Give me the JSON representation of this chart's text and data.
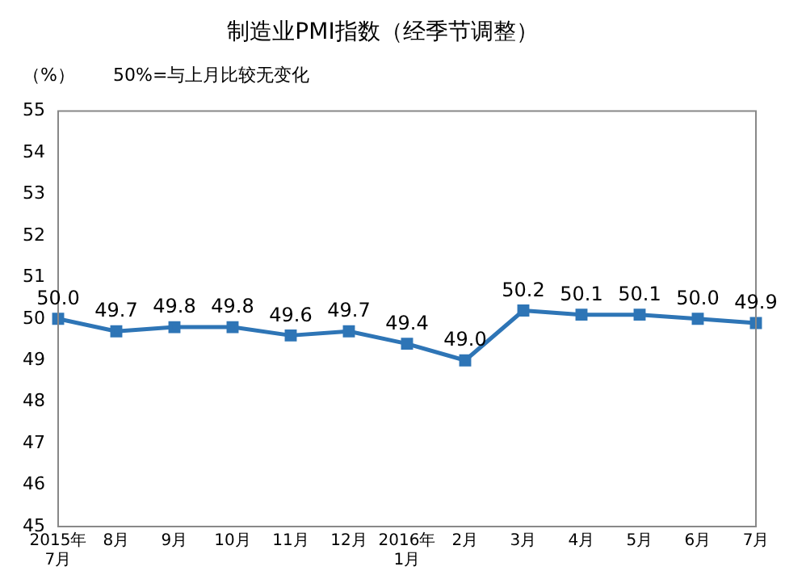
{
  "chart_data": {
    "type": "line",
    "title": "制造业PMI指数（经季节调整）",
    "ylabel": "（%）",
    "annotations": [
      "50%=与上月比较无变化"
    ],
    "categories": [
      "2015年\n7月",
      "8月",
      "9月",
      "10月",
      "11月",
      "12月",
      "2016年\n1月",
      "2月",
      "3月",
      "4月",
      "5月",
      "6月",
      "7月"
    ],
    "series": [
      {
        "color": "#2e75b6",
        "values": [
          50.0,
          49.7,
          49.8,
          49.8,
          49.6,
          49.7,
          49.4,
          49.0,
          50.2,
          50.1,
          50.1,
          50.0,
          49.9
        ],
        "value_labels": [
          "50.0",
          "49.7",
          "49.8",
          "49.8",
          "49.6",
          "49.7",
          "49.4",
          "49.0",
          "50.2",
          "50.1",
          "50.1",
          "50.0",
          "49.9"
        ]
      }
    ],
    "ylim": [
      45,
      55
    ],
    "yticks": [
      45,
      46,
      47,
      48,
      49,
      50,
      51,
      52,
      53,
      54,
      55
    ],
    "grid": false,
    "legend": false,
    "marker": "square",
    "line_style": "solid"
  }
}
